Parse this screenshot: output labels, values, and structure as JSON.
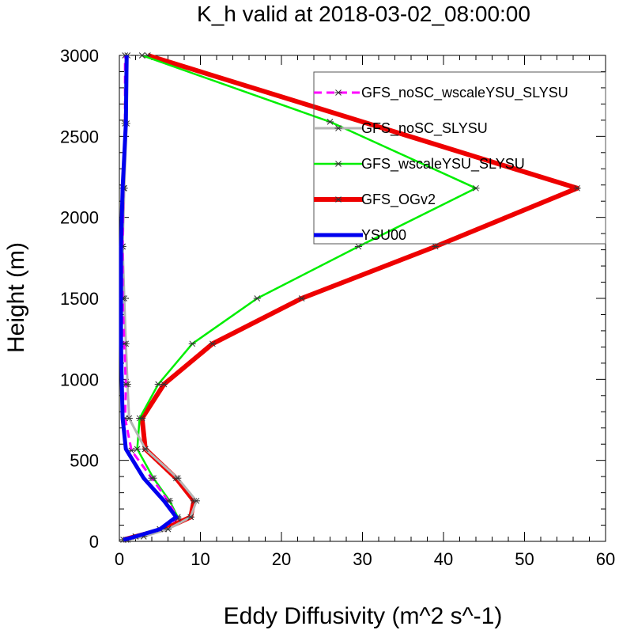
{
  "chart_data": {
    "type": "line",
    "title": "K_h valid at 2018-03-02_08:00:00",
    "xlabel": "Eddy Diffusivity (m^2 s^-1)",
    "ylabel": "Height (m)",
    "xlim": [
      0,
      60
    ],
    "ylim": [
      0,
      3000
    ],
    "xticks": [
      "0",
      "10",
      "20",
      "30",
      "40",
      "50",
      "60"
    ],
    "yticks": [
      "0",
      "500",
      "1000",
      "1500",
      "2000",
      "2500",
      "3000"
    ],
    "grid": false,
    "legend_position": "top-right",
    "series": [
      {
        "name": "GFS_noSC_wscaleYSU_SLYSU",
        "color": "#ff00ff",
        "dash": true,
        "markers": true,
        "points": [
          [
            0.8,
            10
          ],
          [
            2.0,
            30
          ],
          [
            5.0,
            75
          ],
          [
            7.2,
            140
          ],
          [
            6.0,
            250
          ],
          [
            4.0,
            390
          ],
          [
            1.5,
            560
          ],
          [
            0.7,
            760
          ],
          [
            0.8,
            970
          ],
          [
            0.6,
            1220
          ],
          [
            0.4,
            1500
          ],
          [
            0.4,
            1820
          ],
          [
            0.5,
            2180
          ],
          [
            0.7,
            2580
          ],
          [
            0.7,
            3000
          ]
        ]
      },
      {
        "name": "GFS_noSC_SLYSU",
        "color": "#b5b5b5",
        "dash": false,
        "markers": true,
        "points": [
          [
            1.0,
            10
          ],
          [
            3.0,
            30
          ],
          [
            6.0,
            75
          ],
          [
            8.8,
            150
          ],
          [
            9.5,
            250
          ],
          [
            7.2,
            390
          ],
          [
            3.2,
            570
          ],
          [
            1.2,
            760
          ],
          [
            1.0,
            970
          ],
          [
            0.8,
            1220
          ],
          [
            0.6,
            1500
          ],
          [
            0.4,
            1820
          ],
          [
            0.6,
            2180
          ],
          [
            0.9,
            2580
          ],
          [
            1.0,
            3000
          ]
        ]
      },
      {
        "name": "GFS_wscaleYSU_SLYSU",
        "color": "#00ee00",
        "dash": false,
        "markers": true,
        "points": [
          [
            0.5,
            10
          ],
          [
            2.0,
            30
          ],
          [
            5.0,
            75
          ],
          [
            7.2,
            150
          ],
          [
            6.2,
            250
          ],
          [
            4.2,
            390
          ],
          [
            2.2,
            570
          ],
          [
            2.5,
            760
          ],
          [
            4.8,
            970
          ],
          [
            9.0,
            1220
          ],
          [
            17.0,
            1500
          ],
          [
            29.5,
            1820
          ],
          [
            44.0,
            2180
          ],
          [
            26.0,
            2590
          ],
          [
            2.8,
            3000
          ]
        ]
      },
      {
        "name": "GFS_OGv2",
        "color": "#ee0000",
        "dash": false,
        "markers": true,
        "points": [
          [
            0.5,
            10
          ],
          [
            2.0,
            30
          ],
          [
            5.5,
            75
          ],
          [
            8.8,
            150
          ],
          [
            9.2,
            250
          ],
          [
            7.0,
            390
          ],
          [
            3.2,
            570
          ],
          [
            2.8,
            760
          ],
          [
            5.5,
            970
          ],
          [
            11.5,
            1220
          ],
          [
            22.5,
            1500
          ],
          [
            39.0,
            1820
          ],
          [
            56.5,
            2180
          ],
          [
            3.5,
            3000
          ]
        ]
      },
      {
        "name": "YSU00",
        "color": "#0000ee",
        "dash": false,
        "markers": false,
        "points": [
          [
            0.5,
            10
          ],
          [
            2.0,
            30
          ],
          [
            5.0,
            75
          ],
          [
            7.0,
            150
          ],
          [
            5.5,
            250
          ],
          [
            3.0,
            390
          ],
          [
            0.8,
            570
          ],
          [
            0.4,
            760
          ],
          [
            0.3,
            970
          ],
          [
            0.2,
            1220
          ],
          [
            0.2,
            1500
          ],
          [
            0.2,
            1820
          ],
          [
            0.4,
            2180
          ],
          [
            0.8,
            2580
          ],
          [
            0.9,
            3000
          ]
        ]
      }
    ]
  }
}
